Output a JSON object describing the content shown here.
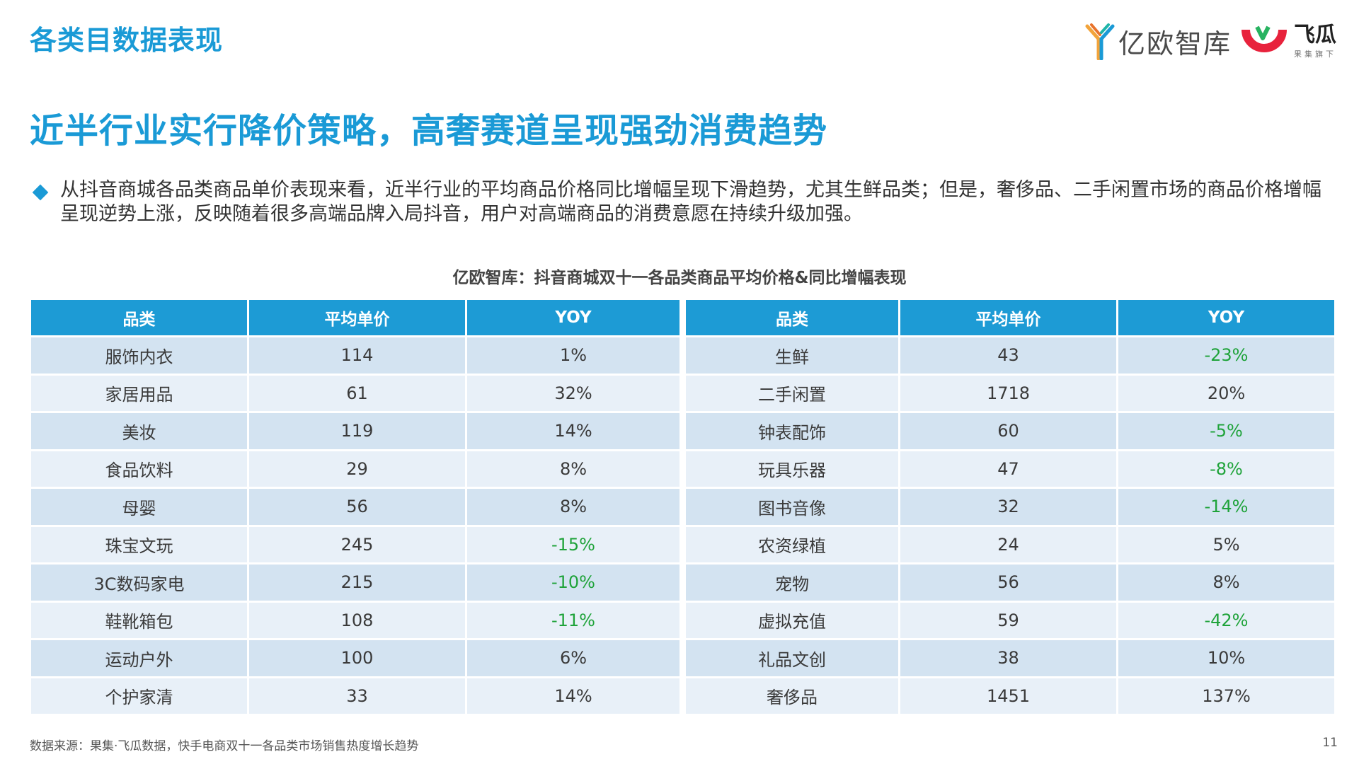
{
  "section_title": "各类目数据表现",
  "headline": "近半行业实行降价策略，高奢赛道呈现强劲消费趋势",
  "summary": "从抖音商城各品类商品单价表现来看，近半行业的平均商品价格同比增幅呈现下滑趋势，尤其生鲜品类；但是，奢侈品、二手闲置市场的商品价格增幅呈现逆势上涨，反映随着很多高端品牌入局抖音，用户对高端商品的消费意愿在持续升级加强。",
  "logos": {
    "yiou": "亿欧智库",
    "feigua": "飞瓜",
    "feigua_sub": "果集旗下"
  },
  "table_title": "亿欧智库：抖音商城双十一各品类商品平均价格&同比增幅表现",
  "columns": [
    "品类",
    "平均单价",
    "YOY"
  ],
  "left_rows": [
    {
      "category": "服饰内衣",
      "price": "114",
      "yoy": "1%"
    },
    {
      "category": "家居用品",
      "price": "61",
      "yoy": "32%"
    },
    {
      "category": "美妆",
      "price": "119",
      "yoy": "14%"
    },
    {
      "category": "食品饮料",
      "price": "29",
      "yoy": "8%"
    },
    {
      "category": "母婴",
      "price": "56",
      "yoy": "8%"
    },
    {
      "category": "珠宝文玩",
      "price": "245",
      "yoy": "-15%"
    },
    {
      "category": "3C数码家电",
      "price": "215",
      "yoy": "-10%"
    },
    {
      "category": "鞋靴箱包",
      "price": "108",
      "yoy": "-11%"
    },
    {
      "category": "运动户外",
      "price": "100",
      "yoy": "6%"
    },
    {
      "category": "个护家清",
      "price": "33",
      "yoy": "14%"
    }
  ],
  "right_rows": [
    {
      "category": "生鲜",
      "price": "43",
      "yoy": "-23%"
    },
    {
      "category": "二手闲置",
      "price": "1718",
      "yoy": "20%"
    },
    {
      "category": "钟表配饰",
      "price": "60",
      "yoy": "-5%"
    },
    {
      "category": "玩具乐器",
      "price": "47",
      "yoy": "-8%"
    },
    {
      "category": "图书音像",
      "price": "32",
      "yoy": "-14%"
    },
    {
      "category": "农资绿植",
      "price": "24",
      "yoy": "5%"
    },
    {
      "category": "宠物",
      "price": "56",
      "yoy": "8%"
    },
    {
      "category": "虚拟充值",
      "price": "59",
      "yoy": "-42%"
    },
    {
      "category": "礼品文创",
      "price": "38",
      "yoy": "10%"
    },
    {
      "category": "奢侈品",
      "price": "1451",
      "yoy": "137%"
    }
  ],
  "colors": {
    "accent": "#1a9ad6",
    "header_bg": "#1d9bd5",
    "row_odd": "#d3e3f1",
    "row_even": "#e8f0f8",
    "negative": "#1fa33a"
  },
  "footer": {
    "source": "数据来源：果集·飞瓜数据，快手电商双十一各品类市场销售热度增长趋势",
    "page_number": "11"
  }
}
